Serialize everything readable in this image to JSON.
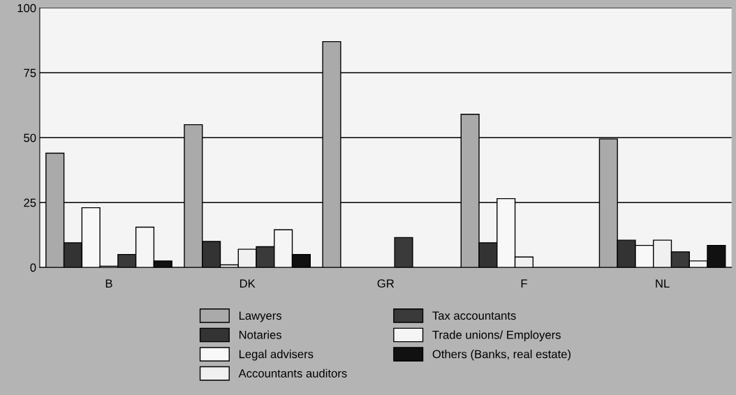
{
  "chart_data": {
    "type": "bar",
    "categories": [
      "B",
      "DK",
      "GR",
      "F",
      "NL"
    ],
    "series": [
      {
        "name": "Lawyers",
        "color": "#aaaaaa",
        "values": [
          44,
          55,
          87,
          59,
          49.5
        ]
      },
      {
        "name": "Notaries",
        "color": "#333333",
        "values": [
          9.5,
          10,
          null,
          9.5,
          10.5
        ]
      },
      {
        "name": "Legal advisers",
        "color": "#f8f8f8",
        "values": [
          23,
          1,
          null,
          26.5,
          8.5
        ]
      },
      {
        "name": "Accountants auditors",
        "color": "#f0f0f0",
        "values": [
          0.5,
          7,
          null,
          4,
          10.5
        ]
      },
      {
        "name": "Tax accountants",
        "color": "#3a3a3a",
        "values": [
          5,
          8,
          11.5,
          null,
          6
        ]
      },
      {
        "name": "Trade unions/ Employers",
        "color": "#f5f5f5",
        "values": [
          15.5,
          14.5,
          null,
          null,
          2.5
        ]
      },
      {
        "name": "Others (Banks, real estate)",
        "color": "#111111",
        "values": [
          2.5,
          5,
          null,
          null,
          8.5
        ]
      }
    ],
    "ylim": [
      0,
      100
    ],
    "yticks": [
      0,
      25,
      50,
      75,
      100
    ],
    "grid": "y",
    "legend": "bottom"
  }
}
